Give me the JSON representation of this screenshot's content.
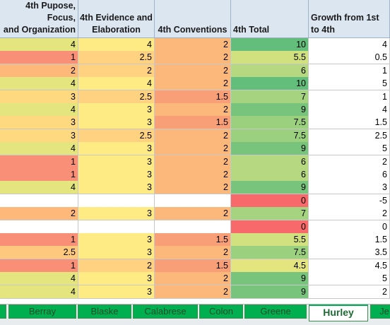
{
  "headers": [
    [
      "4th Pupose, Focus,",
      "and Organization"
    ],
    [
      "4th Evidence and",
      "Elaboration"
    ],
    [
      "",
      "4th Conventions"
    ],
    [
      "",
      "4th Total"
    ],
    [
      "Growth from 1st",
      "to 4th"
    ]
  ],
  "rows": [
    {
      "v": [
        "4",
        "4",
        "2",
        "10",
        "4"
      ],
      "f": [
        "#e4e57e",
        "#feeb84",
        "#fbb87a",
        "#63be7b",
        "#ffffff"
      ]
    },
    {
      "v": [
        "1",
        "2.5",
        "2",
        "5.5",
        "0.5"
      ],
      "f": [
        "#f88f76",
        "#fed280",
        "#fbb87a",
        "#d1e17f",
        "#ffffff"
      ]
    },
    {
      "v": [
        "2",
        "2",
        "2",
        "6",
        "1"
      ],
      "f": [
        "#fdb87a",
        "#fed280",
        "#fbb87a",
        "#b5d880",
        "#ffffff"
      ]
    },
    {
      "v": [
        "4",
        "4",
        "2",
        "10",
        "5"
      ],
      "f": [
        "#e4e57e",
        "#feeb84",
        "#fbb87a",
        "#63be7b",
        "#ffffff"
      ]
    },
    {
      "v": [
        "3",
        "2.5",
        "1.5",
        "7",
        "1"
      ],
      "f": [
        "#fed980",
        "#fed280",
        "#f89f78",
        "#a6d380",
        "#ffffff"
      ]
    },
    {
      "v": [
        "4",
        "3",
        "2",
        "9",
        "4"
      ],
      "f": [
        "#e4e57e",
        "#feeb84",
        "#fbb87a",
        "#78c47c",
        "#ffffff"
      ]
    },
    {
      "v": [
        "3",
        "3",
        "1.5",
        "7.5",
        "1.5"
      ],
      "f": [
        "#fed980",
        "#feeb84",
        "#f89f78",
        "#9bd07f",
        "#ffffff"
      ]
    },
    {
      "v": [
        "3",
        "2.5",
        "2",
        "7.5",
        "2.5"
      ],
      "f": [
        "#fed980",
        "#fed280",
        "#fbb87a",
        "#9bd07f",
        "#ffffff"
      ]
    },
    {
      "v": [
        "4",
        "3",
        "2",
        "9",
        "5"
      ],
      "f": [
        "#e4e57e",
        "#feeb84",
        "#fbb87a",
        "#78c47c",
        "#ffffff"
      ]
    },
    {
      "v": [
        "1",
        "3",
        "2",
        "6",
        "2"
      ],
      "f": [
        "#f88f76",
        "#feeb84",
        "#fbb87a",
        "#b5d880",
        "#ffffff"
      ]
    },
    {
      "v": [
        "1",
        "3",
        "2",
        "6",
        "6"
      ],
      "f": [
        "#f88f76",
        "#feeb84",
        "#fbb87a",
        "#b5d880",
        "#ffffff"
      ]
    },
    {
      "v": [
        "4",
        "3",
        "2",
        "9",
        "3"
      ],
      "f": [
        "#e4e57e",
        "#feeb84",
        "#fbb87a",
        "#78c47c",
        "#ffffff"
      ]
    },
    {
      "v": [
        "",
        "",
        "",
        "0",
        "-5"
      ],
      "f": [
        "#ffffff",
        "#ffffff",
        "#ffffff",
        "#f8696b",
        "#ffffff"
      ]
    },
    {
      "v": [
        "2",
        "3",
        "2",
        "7",
        "2"
      ],
      "f": [
        "#fdb87a",
        "#feeb84",
        "#fbb87a",
        "#a6d380",
        "#ffffff"
      ]
    },
    {
      "v": [
        "",
        "",
        "",
        "0",
        "0"
      ],
      "f": [
        "#ffffff",
        "#ffffff",
        "#ffffff",
        "#f8696b",
        "#ffffff"
      ]
    },
    {
      "v": [
        "1",
        "3",
        "1.5",
        "5.5",
        "1.5"
      ],
      "f": [
        "#f88f76",
        "#feeb84",
        "#f89f78",
        "#d1e17f",
        "#ffffff"
      ]
    },
    {
      "v": [
        "2.5",
        "3",
        "2",
        "7.5",
        "3.5"
      ],
      "f": [
        "#fec97e",
        "#feeb84",
        "#fbb87a",
        "#9bd07f",
        "#ffffff"
      ]
    },
    {
      "v": [
        "1",
        "2",
        "1.5",
        "4.5",
        "4.5"
      ],
      "f": [
        "#f88f76",
        "#fed280",
        "#f89f78",
        "#e4e57e",
        "#ffffff"
      ]
    },
    {
      "v": [
        "4",
        "3",
        "2",
        "9",
        "5"
      ],
      "f": [
        "#e4e57e",
        "#feeb84",
        "#fbb87a",
        "#78c47c",
        "#ffffff"
      ]
    },
    {
      "v": [
        "4",
        "3",
        "2",
        "9",
        "2"
      ],
      "f": [
        "#e4e57e",
        "#feeb84",
        "#fbb87a",
        "#78c47c",
        "#ffffff"
      ]
    }
  ],
  "tabs": [
    {
      "label": ""
    },
    {
      "label": "Berray"
    },
    {
      "label": "Blaske"
    },
    {
      "label": "Calabrese"
    },
    {
      "label": "Colon"
    },
    {
      "label": "Greene"
    },
    {
      "label": "Hurley",
      "active": true
    },
    {
      "label": "Je"
    }
  ]
}
